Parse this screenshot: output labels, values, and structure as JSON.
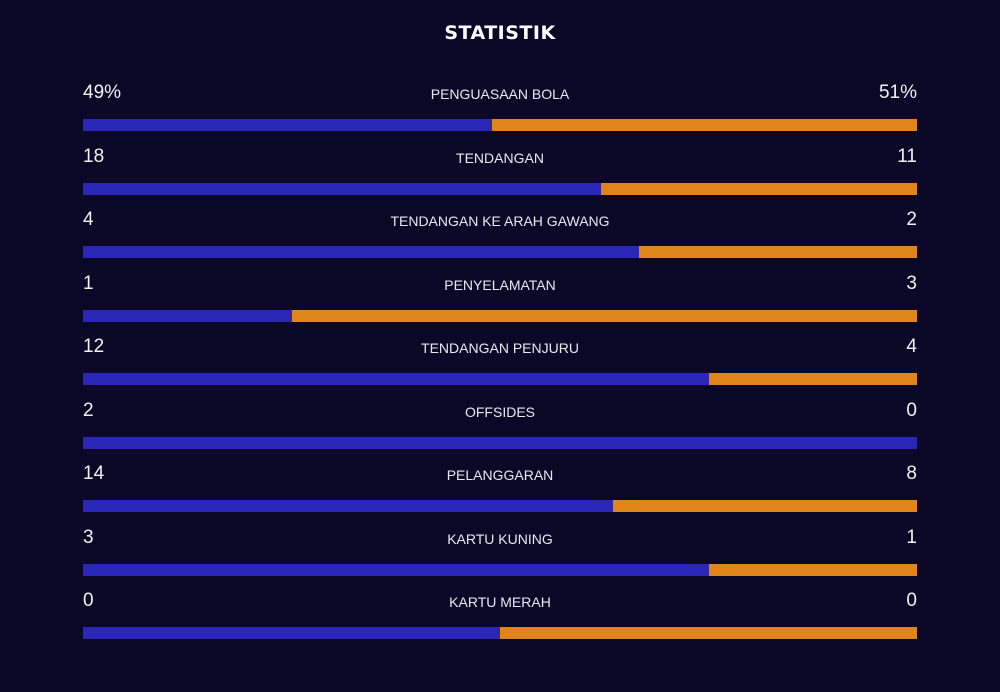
{
  "title": "STATISTIK",
  "colors": {
    "background": "#0a0826",
    "home": "#2a27b8",
    "away": "#e0851a"
  },
  "stats": [
    {
      "label": "PENGUASAAN BOLA",
      "home": "49%",
      "away": "51%",
      "home_share": 0.49
    },
    {
      "label": "TENDANGAN",
      "home": "18",
      "away": "11",
      "home_share": 0.621
    },
    {
      "label": "TENDANGAN KE ARAH GAWANG",
      "home": "4",
      "away": "2",
      "home_share": 0.667
    },
    {
      "label": "PENYELAMATAN",
      "home": "1",
      "away": "3",
      "home_share": 0.25
    },
    {
      "label": "TENDANGAN PENJURU",
      "home": "12",
      "away": "4",
      "home_share": 0.75
    },
    {
      "label": "OFFSIDES",
      "home": "2",
      "away": "0",
      "home_share": 1.0
    },
    {
      "label": "PELANGGARAN",
      "home": "14",
      "away": "8",
      "home_share": 0.636
    },
    {
      "label": "KARTU KUNING",
      "home": "3",
      "away": "1",
      "home_share": 0.75
    },
    {
      "label": "KARTU MERAH",
      "home": "0",
      "away": "0",
      "home_share": 0.5
    }
  ]
}
